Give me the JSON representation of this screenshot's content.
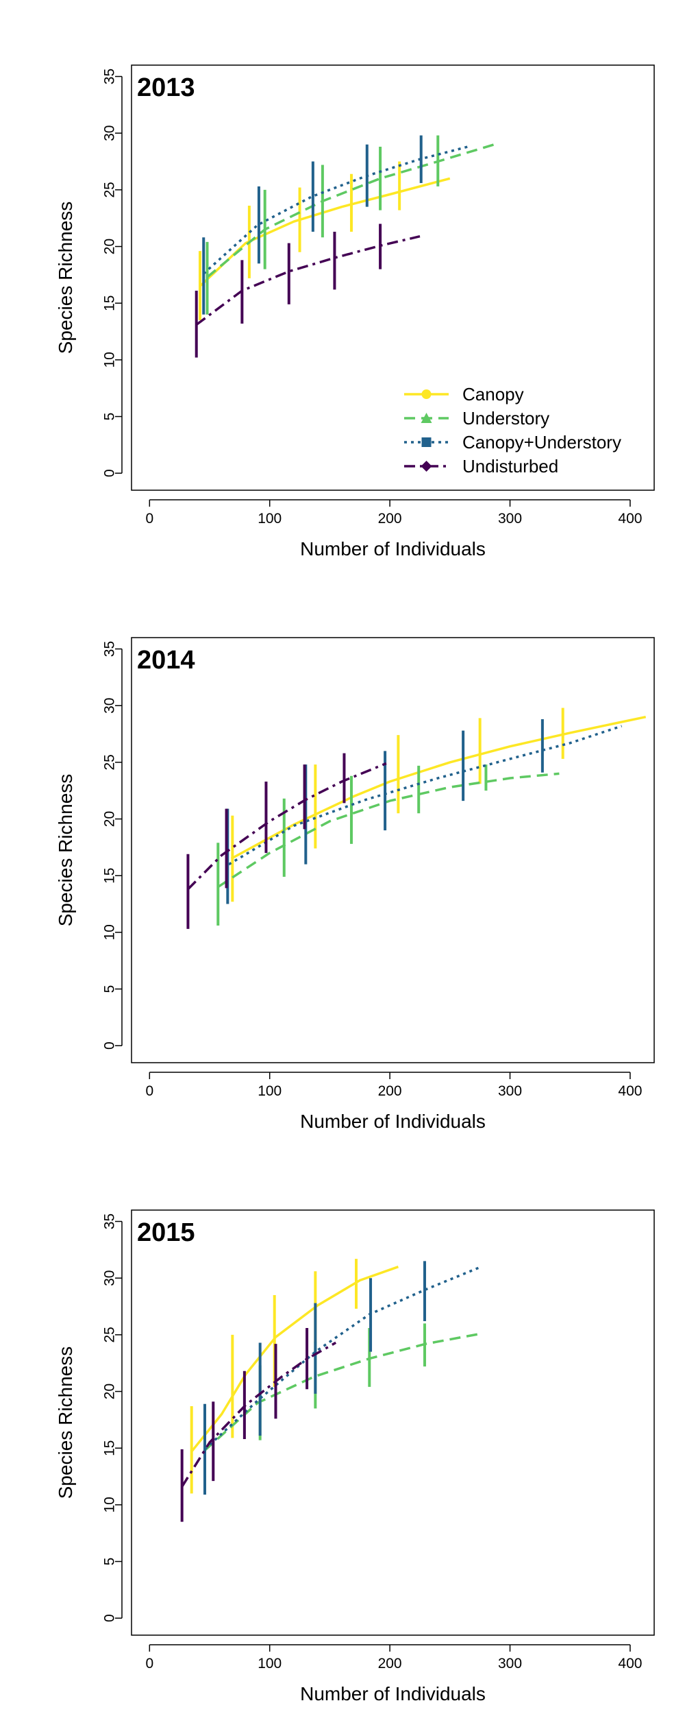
{
  "colors": {
    "canopy": "#fde725",
    "understory": "#5ec962",
    "canopy_understory": "#21618c",
    "undisturbed": "#440154",
    "axis": "#000000"
  },
  "legend": {
    "position": "bottom-right of first panel",
    "entries": [
      {
        "label": "Canopy",
        "series": "canopy",
        "marker": "circle",
        "dash": "solid"
      },
      {
        "label": "Understory",
        "series": "understory",
        "marker": "triangle",
        "dash": "dashed"
      },
      {
        "label": "Canopy+Understory",
        "series": "canopy_understory",
        "marker": "square",
        "dash": "dotted"
      },
      {
        "label": "Undisturbed",
        "series": "undisturbed",
        "marker": "diamond",
        "dash": "dashdot"
      }
    ]
  },
  "chart_data": [
    {
      "type": "line",
      "title": "2013",
      "xlabel": "Number of Individuals",
      "ylabel": "Species Richness",
      "xlim": [
        -15,
        420
      ],
      "ylim": [
        -1.5,
        36
      ],
      "xticks": [
        0,
        100,
        200,
        300,
        400
      ],
      "yticks": [
        0,
        5,
        10,
        15,
        20,
        25,
        30,
        35
      ],
      "grid": false,
      "series": [
        {
          "name": "Canopy",
          "key": "canopy",
          "x": [
            42,
            80,
            120,
            160,
            200,
            250
          ],
          "y": [
            16.5,
            20.3,
            22.2,
            23.5,
            24.6,
            26.0
          ],
          "ci_x": [
            42,
            83,
            125,
            168,
            208
          ],
          "ci_low": [
            13.5,
            17.2,
            19.5,
            21.3,
            23.2
          ],
          "ci_high": [
            19.6,
            23.6,
            25.2,
            26.4,
            27.5
          ]
        },
        {
          "name": "Understory",
          "key": "understory",
          "x": [
            48,
            96,
            144,
            192,
            240,
            287
          ],
          "y": [
            17.3,
            21.5,
            24.0,
            26.0,
            27.5,
            29.0
          ],
          "ci_x": [
            48,
            96,
            144,
            192,
            240
          ],
          "ci_low": [
            14.0,
            18.0,
            20.8,
            23.2,
            25.3
          ],
          "ci_high": [
            20.4,
            25.0,
            27.2,
            28.8,
            29.8
          ]
        },
        {
          "name": "Canopy+Understory",
          "key": "canopy_understory",
          "x": [
            45,
            90,
            135,
            180,
            225,
            265
          ],
          "y": [
            17.6,
            21.9,
            24.4,
            26.2,
            27.7,
            28.8
          ],
          "ci_x": [
            45,
            91,
            136,
            181,
            226
          ],
          "ci_low": [
            14.0,
            18.5,
            21.3,
            23.5,
            25.6
          ],
          "ci_high": [
            20.8,
            25.3,
            27.5,
            29.0,
            29.8
          ]
        },
        {
          "name": "Undisturbed",
          "key": "undisturbed",
          "x": [
            39,
            77,
            116,
            154,
            193,
            225
          ],
          "y": [
            13.1,
            16.1,
            17.8,
            19.0,
            20.1,
            20.9
          ],
          "ci_x": [
            39,
            77,
            116,
            154,
            192
          ],
          "ci_low": [
            10.2,
            13.2,
            14.9,
            16.2,
            18.0
          ],
          "ci_high": [
            16.1,
            18.8,
            20.3,
            21.3,
            22.0
          ]
        }
      ]
    },
    {
      "type": "line",
      "title": "2014",
      "xlabel": "Number of Individuals",
      "ylabel": "Species Richness",
      "xlim": [
        -15,
        420
      ],
      "ylim": [
        -1.5,
        36
      ],
      "xticks": [
        0,
        100,
        200,
        300,
        400
      ],
      "yticks": [
        0,
        5,
        10,
        15,
        20,
        25,
        30,
        35
      ],
      "grid": false,
      "series": [
        {
          "name": "Canopy",
          "key": "canopy",
          "x": [
            68,
            120,
            170,
            200,
            250,
            300,
            350,
            413
          ],
          "y": [
            16.5,
            19.5,
            22.0,
            23.3,
            25.0,
            26.4,
            27.6,
            29.0
          ],
          "ci_x": [
            69,
            138,
            207,
            275,
            344
          ],
          "ci_low": [
            12.7,
            17.4,
            20.5,
            23.1,
            25.3
          ],
          "ci_high": [
            20.3,
            24.8,
            27.4,
            28.9,
            29.8
          ]
        },
        {
          "name": "Understory",
          "key": "understory",
          "x": [
            57,
            100,
            150,
            200,
            250,
            300,
            341
          ],
          "y": [
            14.0,
            17.0,
            19.8,
            21.6,
            22.8,
            23.6,
            24.0
          ],
          "ci_x": [
            57,
            112,
            168,
            224,
            280
          ],
          "ci_low": [
            10.6,
            14.9,
            17.8,
            20.5,
            22.5
          ],
          "ci_high": [
            17.9,
            21.8,
            23.8,
            24.7,
            24.8
          ]
        },
        {
          "name": "Canopy+Understory",
          "key": "canopy_understory",
          "x": [
            66,
            120,
            180,
            240,
            300,
            350,
            393
          ],
          "y": [
            16.0,
            19.4,
            21.7,
            23.6,
            25.3,
            26.7,
            28.2
          ],
          "ci_x": [
            65,
            130,
            196,
            261,
            327
          ],
          "ci_low": [
            12.5,
            16.0,
            19.0,
            21.6,
            24.1
          ],
          "ci_high": [
            20.9,
            24.8,
            26.0,
            27.8,
            28.8
          ]
        },
        {
          "name": "Undisturbed",
          "key": "undisturbed",
          "x": [
            32,
            60,
            100,
            130,
            160,
            197
          ],
          "y": [
            13.8,
            16.8,
            19.8,
            21.7,
            23.3,
            24.9
          ],
          "ci_x": [
            32,
            64,
            97,
            129,
            162
          ],
          "ci_low": [
            10.3,
            13.9,
            17.0,
            19.1,
            21.4
          ],
          "ci_high": [
            16.9,
            20.9,
            23.3,
            24.8,
            25.8
          ]
        }
      ]
    },
    {
      "type": "line",
      "title": "2015",
      "xlabel": "Number of Individuals",
      "ylabel": "Species Richness",
      "xlim": [
        -15,
        420
      ],
      "ylim": [
        -1.5,
        36
      ],
      "xticks": [
        0,
        100,
        200,
        300,
        400
      ],
      "yticks": [
        0,
        5,
        10,
        15,
        20,
        25,
        30,
        35
      ],
      "grid": false,
      "series": [
        {
          "name": "Canopy",
          "key": "canopy",
          "x": [
            35,
            60,
            80,
            105,
            140,
            175,
            207
          ],
          "y": [
            14.7,
            18.0,
            21.5,
            24.8,
            27.6,
            29.8,
            31.0
          ],
          "ci_x": [
            35,
            69,
            104,
            138,
            172
          ],
          "ci_low": [
            11.0,
            15.9,
            20.4,
            24.3,
            27.3
          ],
          "ci_high": [
            18.7,
            25.0,
            28.5,
            30.6,
            31.7
          ]
        },
        {
          "name": "Understory",
          "key": "understory",
          "x": [
            46,
            90,
            137,
            183,
            230,
            276
          ],
          "y": [
            14.8,
            19.0,
            21.3,
            22.9,
            24.2,
            25.1
          ],
          "ci_x": [
            46,
            92,
            138,
            183,
            229
          ],
          "ci_low": [
            11.5,
            15.7,
            18.5,
            20.4,
            22.2
          ],
          "ci_high": [
            18.1,
            22.3,
            24.4,
            25.6,
            26.0
          ]
        },
        {
          "name": "Canopy+Understory",
          "key": "canopy_understory",
          "x": [
            46,
            90,
            138,
            183,
            230,
            276
          ],
          "y": [
            14.9,
            19.2,
            23.5,
            26.8,
            29.0,
            31.0
          ],
          "ci_x": [
            46,
            92,
            138,
            184,
            229
          ],
          "ci_low": [
            10.9,
            16.1,
            19.8,
            23.5,
            26.2
          ],
          "ci_high": [
            18.9,
            24.3,
            27.8,
            30.0,
            31.5
          ]
        },
        {
          "name": "Undisturbed",
          "key": "undisturbed",
          "x": [
            27,
            50,
            80,
            110,
            130,
            155
          ],
          "y": [
            11.6,
            15.5,
            18.8,
            21.3,
            22.8,
            24.3
          ],
          "ci_x": [
            27,
            53,
            79,
            105,
            131
          ],
          "ci_low": [
            8.5,
            12.1,
            15.8,
            17.6,
            20.2
          ],
          "ci_high": [
            14.9,
            19.1,
            21.8,
            24.2,
            25.6
          ]
        }
      ]
    }
  ]
}
